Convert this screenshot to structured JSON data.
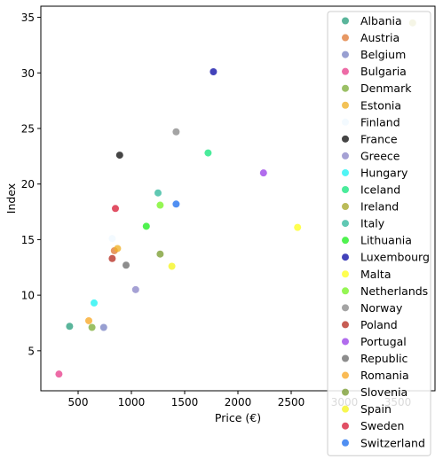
{
  "chart_data": {
    "type": "scatter",
    "title": "",
    "xlabel": "Price (€)",
    "ylabel": "Index",
    "xlim": [
      150,
      3850
    ],
    "ylim": [
      1.4,
      36.0
    ],
    "xticks": [
      500,
      1000,
      1500,
      2000,
      2500,
      3000,
      3500
    ],
    "yticks": [
      5,
      10,
      15,
      20,
      25,
      30,
      35
    ],
    "grid": false,
    "legend_position": "top-right",
    "series": [
      {
        "name": "Albania",
        "color": "#2ca07f",
        "points": [
          [
            420,
            7.2
          ]
        ]
      },
      {
        "name": "Austria",
        "color": "#e07b39",
        "points": [
          [
            840,
            14.0
          ]
        ]
      },
      {
        "name": "Belgium",
        "color": "#7b84c4",
        "points": [
          [
            740,
            7.1
          ]
        ]
      },
      {
        "name": "Bulgaria",
        "color": "#e8418d",
        "points": [
          [
            320,
            2.9
          ]
        ]
      },
      {
        "name": "Denmark",
        "color": "#7fae3b",
        "points": [
          [
            630,
            7.1
          ]
        ]
      },
      {
        "name": "Estonia",
        "color": "#f0b127",
        "points": [
          [
            870,
            14.2
          ]
        ]
      },
      {
        "name": "Finland",
        "color": "#f0f8ff",
        "points": [
          [
            820,
            15.1
          ]
        ]
      },
      {
        "name": "France",
        "color": "#111111",
        "points": [
          [
            890,
            22.6
          ]
        ]
      },
      {
        "name": "Greece",
        "color": "#8c87c8",
        "points": [
          [
            1040,
            10.5
          ]
        ]
      },
      {
        "name": "Hungary",
        "color": "#1ff2f2",
        "points": [
          [
            650,
            9.3
          ]
        ]
      },
      {
        "name": "Iceland",
        "color": "#17e57f",
        "points": [
          [
            1720,
            22.8
          ]
        ]
      },
      {
        "name": "Ireland",
        "color": "#a7a82a",
        "points": [
          [
            3640,
            34.5
          ]
        ]
      },
      {
        "name": "Italy",
        "color": "#33b89e",
        "points": [
          [
            1250,
            19.2
          ]
        ]
      },
      {
        "name": "Lithuania",
        "color": "#1fee1f",
        "points": [
          [
            1140,
            16.2
          ]
        ]
      },
      {
        "name": "Luxembourg",
        "color": "#0e0ea6",
        "points": [
          [
            1770,
            30.1
          ]
        ]
      },
      {
        "name": "Malta",
        "color": "#ffff1f",
        "points": [
          [
            2560,
            16.1
          ]
        ]
      },
      {
        "name": "Netherlands",
        "color": "#77f424",
        "points": [
          [
            1270,
            18.1
          ]
        ]
      },
      {
        "name": "Norway",
        "color": "#8b8b8b",
        "points": [
          [
            1420,
            24.7
          ]
        ]
      },
      {
        "name": "Poland",
        "color": "#b73024",
        "points": [
          [
            820,
            13.3
          ]
        ]
      },
      {
        "name": "Portugal",
        "color": "#9b42e8",
        "points": [
          [
            2240,
            21.0
          ]
        ]
      },
      {
        "name": "Republic",
        "color": "#6d6d6d",
        "points": [
          [
            950,
            12.7
          ]
        ]
      },
      {
        "name": "Romania",
        "color": "#f9a825",
        "points": [
          [
            600,
            7.7
          ]
        ]
      },
      {
        "name": "Slovenia",
        "color": "#7b9e32",
        "points": [
          [
            1270,
            13.7
          ]
        ]
      },
      {
        "name": "Spain",
        "color": "#f5f51f",
        "points": [
          [
            1380,
            12.6
          ]
        ]
      },
      {
        "name": "Sweden",
        "color": "#d81f3a",
        "points": [
          [
            850,
            17.8
          ]
        ]
      },
      {
        "name": "Switzerland",
        "color": "#1f6fee",
        "points": [
          [
            1420,
            18.2
          ]
        ]
      }
    ]
  }
}
